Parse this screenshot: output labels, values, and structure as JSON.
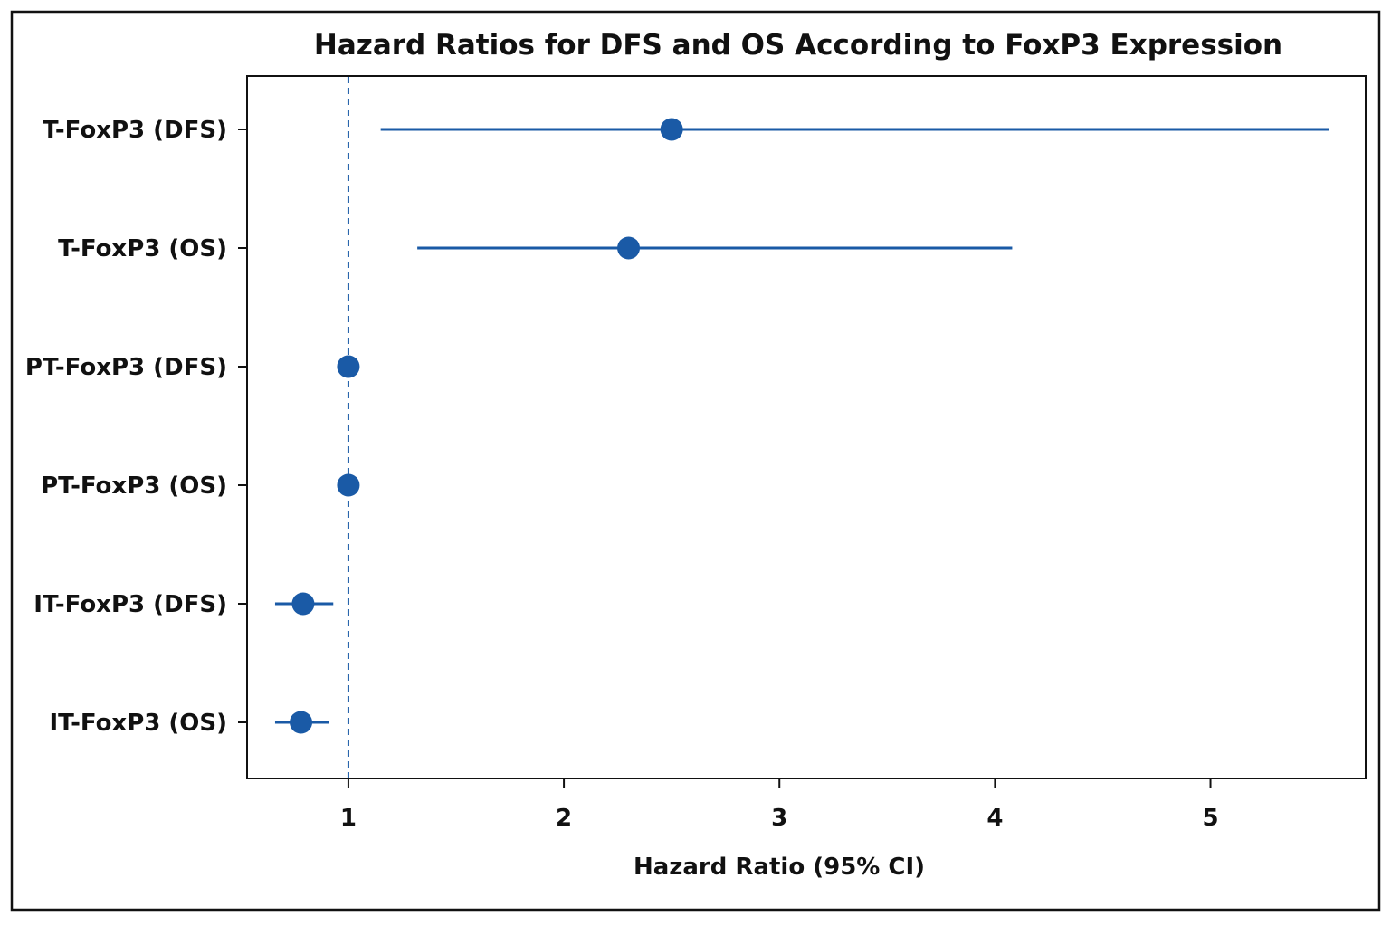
{
  "chart_data": {
    "type": "scatter",
    "subtype": "forest-plot",
    "title": "Hazard Ratios for DFS and OS According to FoxP3 Expression",
    "xlabel": "Hazard Ratio (95% CI)",
    "ylabel": "",
    "xlim": [
      0.53,
      5.72
    ],
    "xticks": [
      1,
      2,
      3,
      4,
      5
    ],
    "reference_line": {
      "x": 1,
      "style": "dashed"
    },
    "grid": false,
    "legend": "none",
    "color": "#1a5aa6",
    "categories": [
      "T-FoxP3 (DFS)",
      "T-FoxP3 (OS)",
      "PT-FoxP3 (DFS)",
      "PT-FoxP3 (OS)",
      "IT-FoxP3 (DFS)",
      "IT-FoxP3 (OS)"
    ],
    "points": [
      {
        "label": "T-FoxP3 (DFS)",
        "hr": 2.5,
        "lower": 1.15,
        "upper": 5.55
      },
      {
        "label": "T-FoxP3 (OS)",
        "hr": 2.3,
        "lower": 1.32,
        "upper": 4.08
      },
      {
        "label": "PT-FoxP3 (DFS)",
        "hr": 1.0,
        "lower": 1.0,
        "upper": 1.0
      },
      {
        "label": "PT-FoxP3 (OS)",
        "hr": 1.0,
        "lower": 1.0,
        "upper": 1.0
      },
      {
        "label": "IT-FoxP3 (DFS)",
        "hr": 0.79,
        "lower": 0.66,
        "upper": 0.93
      },
      {
        "label": "IT-FoxP3 (OS)",
        "hr": 0.78,
        "lower": 0.66,
        "upper": 0.91
      }
    ]
  }
}
